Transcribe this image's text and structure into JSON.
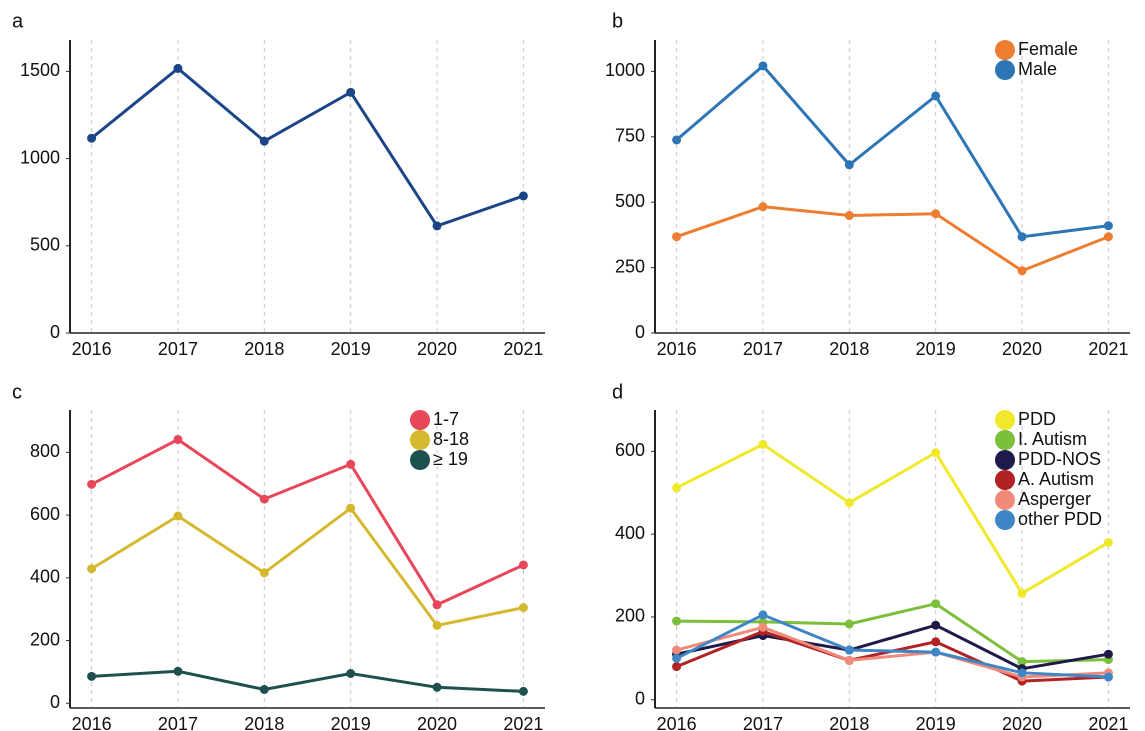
{
  "chart_data": [
    {
      "type": "line",
      "title": "a",
      "x": [
        2016,
        2017,
        2018,
        2019,
        2020,
        2021
      ],
      "xlim": [
        2015.75,
        2021.25
      ],
      "xticks": [
        2016,
        2017,
        2018,
        2019,
        2020,
        2021
      ],
      "ylim": [
        0,
        1680
      ],
      "yticks": [
        0,
        500,
        1000,
        1500
      ],
      "grid": true,
      "series": [
        {
          "name": null,
          "color": "#1c4587",
          "values": [
            1117,
            1517,
            1100,
            1380,
            614,
            786
          ]
        }
      ]
    },
    {
      "type": "line",
      "title": "b",
      "x": [
        2016,
        2017,
        2018,
        2019,
        2020,
        2021
      ],
      "xlim": [
        2015.75,
        2021.25
      ],
      "xticks": [
        2016,
        2017,
        2018,
        2019,
        2020,
        2021
      ],
      "ylim": [
        0,
        1120
      ],
      "yticks": [
        0,
        250,
        500,
        750,
        1000
      ],
      "grid": true,
      "legend": "upper right",
      "series": [
        {
          "name": "Female",
          "color": "#ed7d31",
          "values": [
            368,
            483,
            449,
            456,
            238,
            368
          ]
        },
        {
          "name": "Male",
          "color": "#2e75b6",
          "values": [
            738,
            1021,
            643,
            906,
            368,
            410
          ]
        }
      ]
    },
    {
      "type": "line",
      "title": "c",
      "x": [
        2016,
        2017,
        2018,
        2019,
        2020,
        2021
      ],
      "xlim": [
        2015.75,
        2021.25
      ],
      "xticks": [
        2016,
        2017,
        2018,
        2019,
        2020,
        2021
      ],
      "ylim": [
        -15,
        935
      ],
      "yticks": [
        0,
        200,
        400,
        600,
        800
      ],
      "grid": true,
      "legend": "upper right",
      "series": [
        {
          "name": "1-7",
          "color": "#e8475a",
          "values": [
            698,
            841,
            651,
            762,
            314,
            441
          ]
        },
        {
          "name": "8-18",
          "color": "#d4b82e",
          "values": [
            429,
            597,
            416,
            622,
            248,
            305
          ]
        },
        {
          "name": "≥ 19",
          "color": "#1f5050",
          "values": [
            86,
            102,
            44,
            95,
            51,
            38
          ]
        }
      ]
    },
    {
      "type": "line",
      "title": "d",
      "x": [
        2016,
        2017,
        2018,
        2019,
        2020,
        2021
      ],
      "xlim": [
        2015.75,
        2021.25
      ],
      "xticks": [
        2016,
        2017,
        2018,
        2019,
        2020,
        2021
      ],
      "ylim": [
        -20,
        700
      ],
      "yticks": [
        0,
        200,
        400,
        600
      ],
      "grid": true,
      "legend": "upper right",
      "series": [
        {
          "name": "PDD",
          "color": "#f0e82a",
          "values": [
            512,
            617,
            476,
            597,
            257,
            380
          ]
        },
        {
          "name": "I. Autism",
          "color": "#7bbf3a",
          "values": [
            190,
            188,
            183,
            232,
            92,
            97
          ]
        },
        {
          "name": "PDD-NOS",
          "color": "#1e1a4a",
          "values": [
            110,
            155,
            120,
            180,
            75,
            110
          ]
        },
        {
          "name": "A. Autism",
          "color": "#b22222",
          "values": [
            80,
            165,
            95,
            140,
            45,
            55
          ]
        },
        {
          "name": "Asperger",
          "color": "#f08a7a",
          "values": [
            120,
            175,
            95,
            115,
            55,
            65
          ]
        },
        {
          "name": "other PDD",
          "color": "#3f86c6",
          "values": [
            100,
            205,
            120,
            115,
            65,
            55
          ]
        }
      ]
    }
  ]
}
